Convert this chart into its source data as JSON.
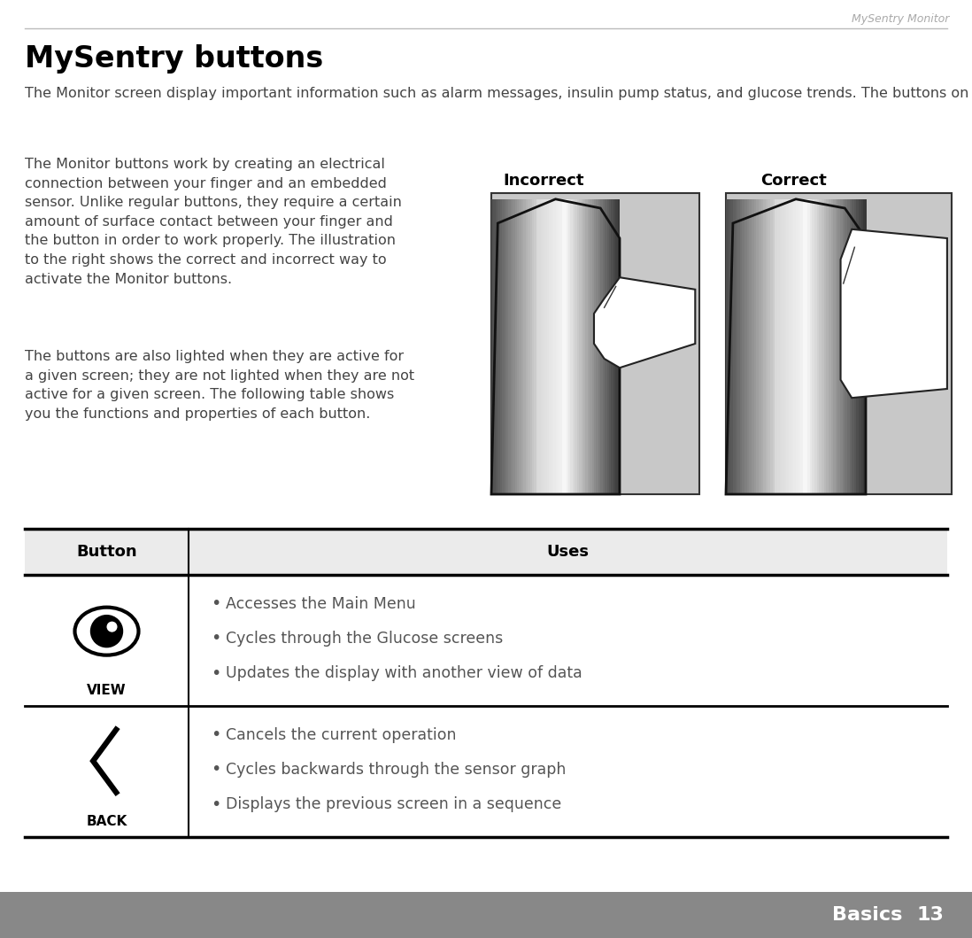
{
  "page_title": "MySentry Monitor",
  "section_title": "MySentry buttons",
  "body_text_1": "The Monitor screen display important information such as alarm messages, insulin pump status, and glucose trends. The buttons on the Monitor face are used to navigate through the MySentry system options and screens.",
  "body_text_2": "The Monitor buttons work by creating an electrical\nconnection between your finger and an embedded\nsensor. Unlike regular buttons, they require a certain\namount of surface contact between your finger and\nthe button in order to work properly. The illustration\nto the right shows the correct and incorrect way to\nactivate the Monitor buttons.",
  "body_text_3": "The buttons are also lighted when they are active for\na given screen; they are not lighted when they are not\nactive for a given screen. The following table shows\nyou the functions and properties of each button.",
  "incorrect_label": "Incorrect",
  "correct_label": "Correct",
  "table_header_col1": "Button",
  "table_header_col2": "Uses",
  "row1_button": "VIEW",
  "row1_uses": [
    "Accesses the Main Menu",
    "Cycles through the Glucose screens",
    "Updates the display with another view of data"
  ],
  "row2_button": "BACK",
  "row2_uses": [
    "Cancels the current operation",
    "Cycles backwards through the sensor graph",
    "Displays the previous screen in a sequence"
  ],
  "footer_text": "Basics",
  "footer_page": "13",
  "bg_color": "#ffffff",
  "footer_bg": "#888888",
  "header_line_color": "#bbbbbb",
  "page_title_color": "#aaaaaa",
  "section_title_color": "#000000",
  "body_color": "#444444",
  "table_body_text_color": "#555555"
}
